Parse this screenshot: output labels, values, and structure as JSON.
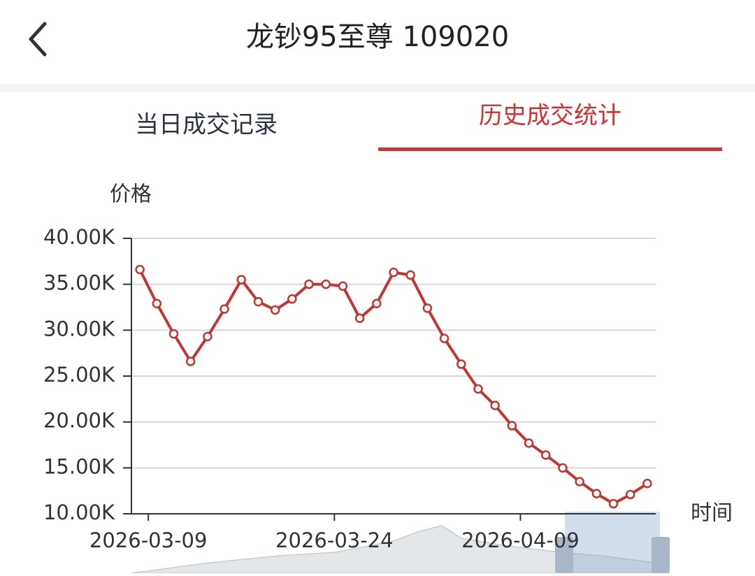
{
  "header": {
    "title": "龙钞95至尊 109020"
  },
  "tabs": [
    "当日成交记录",
    "历史成交统计"
  ],
  "chart_data": {
    "type": "line",
    "y_label": "价格",
    "x_label": "时间",
    "categories": [
      null,
      "2026-03-09",
      null,
      null,
      null,
      null,
      null,
      null,
      null,
      null,
      null,
      null,
      "2026-03-24",
      null,
      null,
      null,
      null,
      null,
      null,
      null,
      null,
      null,
      null,
      "2026-04-09",
      null,
      null,
      null,
      null,
      null,
      null,
      null
    ],
    "series": [
      {
        "name": "价格",
        "color": "#c23531",
        "values": [
          36600,
          32900,
          29600,
          26600,
          29300,
          32300,
          35500,
          33100,
          32200,
          33400,
          35000,
          35000,
          34800,
          31300,
          32900,
          36300,
          36000,
          32400,
          29100,
          26300,
          23600,
          21800,
          19600,
          17700,
          16400,
          15000,
          13500,
          12200,
          11100,
          12100,
          13300
        ]
      }
    ],
    "ylim": [
      10000,
      40000
    ],
    "yticks": [
      {
        "value": 10000,
        "label": "10.00K"
      },
      {
        "value": 15000,
        "label": "15.00K"
      },
      {
        "value": 20000,
        "label": "20.00K"
      },
      {
        "value": 25000,
        "label": "25.00K"
      },
      {
        "value": 30000,
        "label": "30.00K"
      },
      {
        "value": 35000,
        "label": "35.00K"
      },
      {
        "value": 40000,
        "label": "40.00K"
      }
    ],
    "grid": true
  }
}
